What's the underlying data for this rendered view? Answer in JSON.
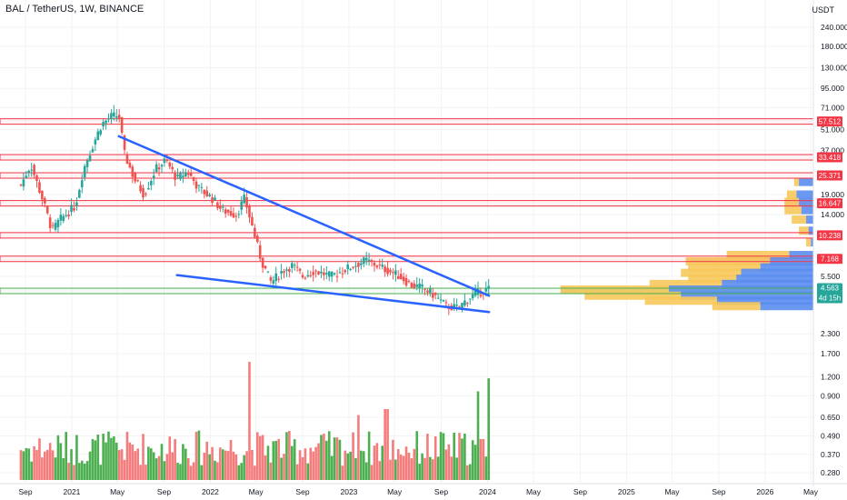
{
  "header": {
    "symbol_title": "BAL / TetherUS, 1W, BINANCE"
  },
  "price_axis": {
    "currency": "USDT"
  },
  "colors": {
    "up": "#26a69a",
    "down": "#ef5350",
    "vol_up": "#4caf50",
    "vol_down": "#f47c7c",
    "trendline": "#2962ff",
    "resistance": "#f23645",
    "support": "#4caf50",
    "vp_yellow": "#f7c85b",
    "vp_blue": "#5b8def"
  },
  "chart_data": {
    "type": "candlestick",
    "timeframe": "1W",
    "y_scale": "log",
    "y_ticks": [
      "240.000",
      "180.000",
      "130.000",
      "95.000",
      "71.000",
      "51.000",
      "37.000",
      "19.000",
      "14.000",
      "5.500",
      "2.300",
      "1.700",
      "1.200",
      "0.900",
      "0.650",
      "0.490",
      "0.370",
      "0.280"
    ],
    "x_ticks": [
      {
        "label": "Sep",
        "date": "2020-09"
      },
      {
        "label": "2021",
        "date": "2021-01"
      },
      {
        "label": "May",
        "date": "2021-05"
      },
      {
        "label": "Sep",
        "date": "2021-09"
      },
      {
        "label": "2022",
        "date": "2022-01"
      },
      {
        "label": "May",
        "date": "2022-05"
      },
      {
        "label": "Sep",
        "date": "2022-09"
      },
      {
        "label": "2023",
        "date": "2023-01"
      },
      {
        "label": "May",
        "date": "2023-05"
      },
      {
        "label": "Sep",
        "date": "2023-09"
      },
      {
        "label": "2024",
        "date": "2024-01"
      },
      {
        "label": "May",
        "date": "2024-05"
      },
      {
        "label": "Sep",
        "date": "2024-09"
      },
      {
        "label": "2025",
        "date": "2025-01"
      },
      {
        "label": "May",
        "date": "2025-05"
      },
      {
        "label": "Sep",
        "date": "2025-09"
      },
      {
        "label": "2026",
        "date": "2026-01"
      },
      {
        "label": "May",
        "date": "2026-05"
      }
    ],
    "price_path": [
      {
        "date": "2020-08-20",
        "price": 22
      },
      {
        "date": "2020-09-15",
        "price": 30
      },
      {
        "date": "2020-10-15",
        "price": 18
      },
      {
        "date": "2020-11-10",
        "price": 11
      },
      {
        "date": "2020-12-01",
        "price": 13
      },
      {
        "date": "2021-01-10",
        "price": 16
      },
      {
        "date": "2021-02-01",
        "price": 28
      },
      {
        "date": "2021-02-25",
        "price": 40
      },
      {
        "date": "2021-03-20",
        "price": 55
      },
      {
        "date": "2021-04-15",
        "price": 62
      },
      {
        "date": "2021-05-05",
        "price": 63
      },
      {
        "date": "2021-05-20",
        "price": 35
      },
      {
        "date": "2021-06-15",
        "price": 24
      },
      {
        "date": "2021-07-10",
        "price": 19
      },
      {
        "date": "2021-08-10",
        "price": 28
      },
      {
        "date": "2021-09-05",
        "price": 32
      },
      {
        "date": "2021-10-05",
        "price": 24
      },
      {
        "date": "2021-11-01",
        "price": 27
      },
      {
        "date": "2021-12-01",
        "price": 21
      },
      {
        "date": "2022-01-05",
        "price": 18
      },
      {
        "date": "2022-02-01",
        "price": 15
      },
      {
        "date": "2022-03-10",
        "price": 14
      },
      {
        "date": "2022-04-01",
        "price": 18
      },
      {
        "date": "2022-04-20",
        "price": 12
      },
      {
        "date": "2022-05-15",
        "price": 7
      },
      {
        "date": "2022-06-10",
        "price": 5
      },
      {
        "date": "2022-07-10",
        "price": 6
      },
      {
        "date": "2022-08-05",
        "price": 6.5
      },
      {
        "date": "2022-09-01",
        "price": 5.5
      },
      {
        "date": "2022-10-01",
        "price": 6
      },
      {
        "date": "2022-11-15",
        "price": 5.5
      },
      {
        "date": "2022-12-15",
        "price": 6
      },
      {
        "date": "2023-01-15",
        "price": 6.5
      },
      {
        "date": "2023-02-15",
        "price": 7
      },
      {
        "date": "2023-03-15",
        "price": 6.5
      },
      {
        "date": "2023-04-15",
        "price": 6
      },
      {
        "date": "2023-05-15",
        "price": 5.5
      },
      {
        "date": "2023-06-15",
        "price": 4.8
      },
      {
        "date": "2023-07-15",
        "price": 4.6
      },
      {
        "date": "2023-08-15",
        "price": 4.1
      },
      {
        "date": "2023-09-15",
        "price": 3.5
      },
      {
        "date": "2023-10-15",
        "price": 3.4
      },
      {
        "date": "2023-11-15",
        "price": 4.0
      },
      {
        "date": "2023-12-10",
        "price": 4.3
      },
      {
        "date": "2024-01-05",
        "price": 4.56
      }
    ],
    "horizontal_levels": [
      {
        "label": "57.512",
        "price": 57.512,
        "kind": "resistance"
      },
      {
        "label": "33.418",
        "price": 33.418,
        "kind": "resistance"
      },
      {
        "label": "25.371",
        "price": 25.371,
        "kind": "resistance"
      },
      {
        "label": "16.647",
        "price": 16.647,
        "kind": "resistance"
      },
      {
        "label": "10.238",
        "price": 10.238,
        "kind": "resistance"
      },
      {
        "label": "7.168",
        "price": 7.168,
        "kind": "resistance"
      },
      {
        "label": "4.408",
        "price": 4.408,
        "kind": "support"
      }
    ],
    "current_price": {
      "label": "4.563",
      "price": 4.563,
      "countdown": "4d 15h"
    },
    "trendlines": [
      {
        "name": "upper-trendline",
        "from": {
          "date": "2021-05-05",
          "price": 46
        },
        "to": {
          "date": "2024-01-05",
          "price": 4.1
        }
      },
      {
        "name": "lower-trendline",
        "from": {
          "date": "2021-10-05",
          "price": 5.6
        },
        "to": {
          "date": "2024-01-05",
          "price": 3.2
        }
      }
    ],
    "volume_profile": [
      {
        "price": 23,
        "yellow": 0.02,
        "blue": 0.06
      },
      {
        "price": 19,
        "yellow": 0.04,
        "blue": 0.07
      },
      {
        "price": 17,
        "yellow": 0.06,
        "blue": 0.06
      },
      {
        "price": 15,
        "yellow": 0.07,
        "blue": 0.05
      },
      {
        "price": 13,
        "yellow": 0.06,
        "blue": 0.03
      },
      {
        "price": 11,
        "yellow": 0.04,
        "blue": 0.02
      },
      {
        "price": 9.2,
        "yellow": 0.02,
        "blue": 0.01
      },
      {
        "price": 7.6,
        "yellow": 0.26,
        "blue": 0.1
      },
      {
        "price": 6.9,
        "yellow": 0.35,
        "blue": 0.18
      },
      {
        "price": 6.3,
        "yellow": 0.3,
        "blue": 0.22
      },
      {
        "price": 5.8,
        "yellow": 0.25,
        "blue": 0.3
      },
      {
        "price": 5.3,
        "yellow": 0.2,
        "blue": 0.32
      },
      {
        "price": 4.9,
        "yellow": 0.3,
        "blue": 0.38
      },
      {
        "price": 4.5,
        "yellow": 0.45,
        "blue": 0.6
      },
      {
        "price": 4.1,
        "yellow": 0.4,
        "blue": 0.55
      },
      {
        "price": 3.8,
        "yellow": 0.3,
        "blue": 0.4
      },
      {
        "price": 3.5,
        "yellow": 0.2,
        "blue": 0.22
      }
    ],
    "volume_peaks": [
      {
        "date": "2022-04-15",
        "relative": 1.0
      },
      {
        "date": "2023-01-25",
        "relative": 0.55
      },
      {
        "date": "2023-04-10",
        "relative": 0.6
      },
      {
        "date": "2023-12-05",
        "relative": 0.75
      },
      {
        "date": "2024-01-05",
        "relative": 0.86
      }
    ]
  }
}
